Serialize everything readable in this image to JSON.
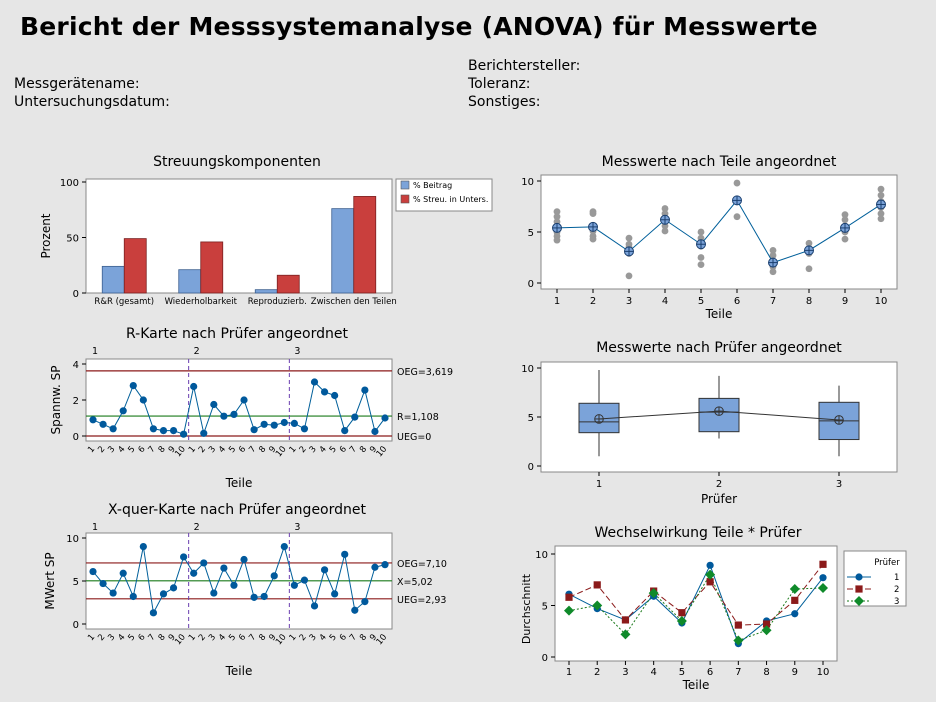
{
  "report": {
    "title": "Bericht der Messsystemanalyse (ANOVA) für Messwerte",
    "fields_left": [
      "Messgerätename:",
      "Untersuchungsdatum:"
    ],
    "fields_right": [
      "Berichtersteller:",
      "Toleranz:",
      "Sonstiges:"
    ]
  },
  "colors": {
    "blue": "#7ba3d9",
    "red": "#c93f3d",
    "navy": "#005f9a",
    "maroon": "#8b1a1a",
    "green": "#1a7a1a",
    "diamond": "#0f8a2a",
    "limit": "#8b1a1a",
    "center": "#1a7a1a",
    "point": "#00599c",
    "gray": "#999999"
  },
  "chart_data": [
    {
      "id": "components",
      "type": "bar",
      "title": "Streuungskomponenten",
      "ylabel": "Prozent",
      "ylim": [
        0,
        100
      ],
      "yticks": [
        0,
        50,
        100
      ],
      "categories": [
        "R&R (gesamt)",
        "Wiederholbarkeit",
        "Reproduzierb.",
        "Zwischen den Teilen"
      ],
      "series": [
        {
          "name": "% Beitrag",
          "values": [
            24,
            21,
            3,
            76
          ]
        },
        {
          "name": "% Streu. in Unters.",
          "values": [
            49,
            46,
            16,
            87
          ]
        }
      ]
    },
    {
      "id": "rchart",
      "type": "line",
      "title": "R-Karte nach Prüfer angeordnet",
      "xlabel": "Teile",
      "ylabel": "Spannw. SP",
      "ylim": [
        0,
        4
      ],
      "yticks": [
        0,
        2,
        4
      ],
      "groups": [
        "1",
        "2",
        "3"
      ],
      "x_ticks": [
        "1",
        "2",
        "3",
        "4",
        "5",
        "6",
        "7",
        "8",
        "9",
        "10"
      ],
      "values": [
        0.9,
        0.65,
        0.4,
        1.4,
        2.8,
        2.0,
        0.4,
        0.3,
        0.3,
        0.1,
        2.75,
        0.15,
        1.75,
        1.1,
        1.2,
        2.0,
        0.35,
        0.65,
        0.6,
        0.75,
        0.7,
        0.4,
        3.0,
        2.45,
        2.25,
        0.3,
        1.05,
        2.55,
        0.25,
        1.0
      ],
      "limits": [
        {
          "label": "OEG=3,619",
          "value": 3.619,
          "kind": "limit"
        },
        {
          "label": "R=1,108",
          "value": 1.108,
          "kind": "center"
        },
        {
          "label": "UEG=0",
          "value": 0,
          "kind": "limit"
        }
      ]
    },
    {
      "id": "xbar",
      "type": "line",
      "title": "X-quer-Karte nach Prüfer angeordnet",
      "xlabel": "Teile",
      "ylabel": "MWert SP",
      "ylim": [
        0,
        10
      ],
      "yticks": [
        0,
        5,
        10
      ],
      "groups": [
        "1",
        "2",
        "3"
      ],
      "x_ticks": [
        "1",
        "2",
        "3",
        "4",
        "5",
        "6",
        "7",
        "8",
        "9",
        "10"
      ],
      "values": [
        6.1,
        4.7,
        3.6,
        5.9,
        3.2,
        9.0,
        1.3,
        3.5,
        4.2,
        7.8,
        5.9,
        7.1,
        3.6,
        6.5,
        4.5,
        7.5,
        3.1,
        3.2,
        5.6,
        9.0,
        4.5,
        5.1,
        2.1,
        6.3,
        3.5,
        8.1,
        1.6,
        2.6,
        6.6,
        6.9
      ],
      "limits": [
        {
          "label": "OEG=7,10",
          "value": 7.1,
          "kind": "limit"
        },
        {
          "label": "X=5,02",
          "value": 5.02,
          "kind": "center"
        },
        {
          "label": "UEG=2,93",
          "value": 2.93,
          "kind": "limit"
        }
      ]
    },
    {
      "id": "byPart",
      "type": "scatter",
      "title": "Messwerte nach Teile angeordnet",
      "xlabel": "Teile",
      "ylim": [
        0,
        10
      ],
      "yticks": [
        0,
        5,
        10
      ],
      "x_ticks": [
        "1",
        "2",
        "3",
        "4",
        "5",
        "6",
        "7",
        "8",
        "9",
        "10"
      ],
      "means": [
        5.4,
        5.5,
        3.1,
        6.2,
        3.8,
        8.1,
        2.0,
        3.2,
        5.4,
        7.7
      ],
      "points": [
        [
          7.0,
          6.5,
          6.0,
          5.5,
          5.0,
          4.6,
          4.2
        ],
        [
          7.0,
          6.8,
          5.5,
          5.1,
          4.6,
          4.3
        ],
        [
          4.4,
          3.8,
          3.5,
          2.9,
          0.7
        ],
        [
          7.3,
          6.8,
          6.2,
          5.6,
          5.1
        ],
        [
          5.0,
          4.4,
          3.6,
          2.5,
          1.8
        ],
        [
          9.8,
          8.1,
          6.5
        ],
        [
          3.2,
          2.7,
          2.1,
          1.6,
          1.1
        ],
        [
          3.9,
          3.4,
          2.9,
          1.4
        ],
        [
          6.7,
          6.2,
          5.6,
          5.0,
          4.3
        ],
        [
          9.2,
          8.6,
          8.0,
          7.4,
          6.8,
          6.3
        ]
      ]
    },
    {
      "id": "byOperator",
      "type": "box",
      "title": "Messwerte nach Prüfer angeordnet",
      "xlabel": "Prüfer",
      "ylim": [
        0,
        10
      ],
      "yticks": [
        0,
        5,
        10
      ],
      "categories": [
        "1",
        "2",
        "3"
      ],
      "boxes": [
        {
          "min": 1.0,
          "q1": 3.4,
          "median": 4.5,
          "q3": 6.4,
          "max": 9.8,
          "mean": 4.8
        },
        {
          "min": 2.8,
          "q1": 3.5,
          "median": 5.5,
          "q3": 6.9,
          "max": 9.2,
          "mean": 5.6
        },
        {
          "min": 1.0,
          "q1": 2.7,
          "median": 4.6,
          "q3": 6.5,
          "max": 8.2,
          "mean": 4.7
        }
      ]
    },
    {
      "id": "interaction",
      "type": "line",
      "title": "Wechselwirkung Teile * Prüfer",
      "xlabel": "Teile",
      "ylabel": "Durchschnitt",
      "ylim": [
        0,
        10
      ],
      "yticks": [
        0,
        5,
        10
      ],
      "x_ticks": [
        "1",
        "2",
        "3",
        "4",
        "5",
        "6",
        "7",
        "8",
        "9",
        "10"
      ],
      "legend_title": "Prüfer",
      "series": [
        {
          "name": "1",
          "values": [
            6.1,
            4.7,
            3.6,
            5.9,
            3.3,
            8.9,
            1.3,
            3.5,
            4.2,
            7.7
          ]
        },
        {
          "name": "2",
          "values": [
            5.8,
            7.0,
            3.6,
            6.4,
            4.3,
            7.3,
            3.1,
            3.2,
            5.5,
            9.0
          ]
        },
        {
          "name": "3",
          "values": [
            4.5,
            5.0,
            2.2,
            6.2,
            3.5,
            8.0,
            1.6,
            2.6,
            6.6,
            6.7
          ]
        }
      ]
    }
  ]
}
